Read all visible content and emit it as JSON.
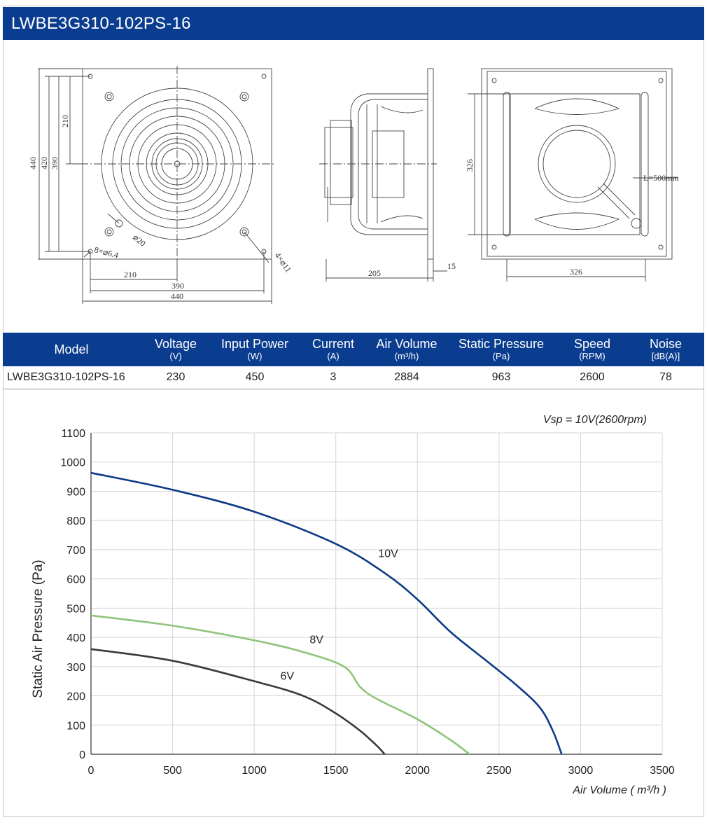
{
  "header": {
    "title": "LWBE3G310-102PS-16"
  },
  "drawings": {
    "front": {
      "dims": [
        "440",
        "420",
        "390",
        "210",
        "210",
        "390",
        "440"
      ],
      "holes_small": "8×⌀6.4",
      "hole_center": "⌀20",
      "holes_large": "4×⌀11"
    },
    "side": {
      "dims": [
        "205",
        "15"
      ]
    },
    "back": {
      "dims": [
        "326",
        "326"
      ],
      "cable": "L=500mm"
    }
  },
  "table": {
    "headers": [
      {
        "label": "Model",
        "unit": ""
      },
      {
        "label": "Voltage",
        "unit": "(V)"
      },
      {
        "label": "Input Power",
        "unit": "(W)"
      },
      {
        "label": "Current",
        "unit": "(A)"
      },
      {
        "label": "Air Volume",
        "unit": "(m³/h)"
      },
      {
        "label": "Static Pressure",
        "unit": "(Pa)"
      },
      {
        "label": "Speed",
        "unit": "(RPM)"
      },
      {
        "label": "Noise",
        "unit": "[dB(A)]"
      }
    ],
    "row": [
      "LWBE3G310-102PS-16",
      "230",
      "450",
      "3",
      "2884",
      "963",
      "2600",
      "78"
    ]
  },
  "chart_data": {
    "type": "line",
    "title": "",
    "annotation": "Vsp = 10V(2600rpm)",
    "xlabel": "Air Volume ( m³/h )",
    "ylabel": "Static Air Pressure  (Pa)",
    "xlim": [
      0,
      3500
    ],
    "ylim": [
      0,
      1100
    ],
    "xticks": [
      0,
      500,
      1000,
      1500,
      2000,
      2500,
      3000,
      3500
    ],
    "yticks": [
      0,
      100,
      200,
      300,
      400,
      500,
      600,
      700,
      800,
      900,
      1000,
      1100
    ],
    "grid": true,
    "series": [
      {
        "name": "10V",
        "color": "#0d3a85",
        "x": [
          0,
          500,
          1000,
          1500,
          1800,
          2000,
          2200,
          2400,
          2600,
          2750,
          2830,
          2884
        ],
        "y": [
          963,
          905,
          830,
          720,
          620,
          530,
          420,
          330,
          240,
          160,
          80,
          0
        ],
        "label_at": [
          1760,
          675
        ]
      },
      {
        "name": "8V",
        "color": "#8fc47a",
        "x": [
          0,
          500,
          1000,
          1300,
          1550,
          1650,
          1750,
          2000,
          2200,
          2320
        ],
        "y": [
          475,
          440,
          390,
          350,
          300,
          230,
          190,
          120,
          50,
          0
        ],
        "label_at": [
          1340,
          380
        ]
      },
      {
        "name": "6V",
        "color": "#3a3a3a",
        "x": [
          0,
          500,
          1000,
          1300,
          1500,
          1650,
          1750,
          1800
        ],
        "y": [
          360,
          320,
          250,
          200,
          140,
          80,
          30,
          0
        ],
        "label_at": [
          1160,
          255
        ]
      }
    ]
  }
}
